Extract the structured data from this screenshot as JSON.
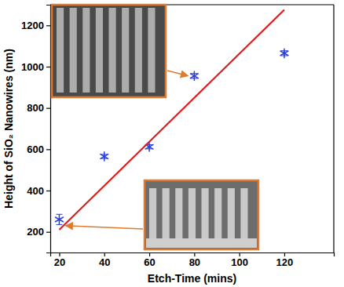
{
  "chart_data": {
    "type": "scatter",
    "x_label": "Etch-Time (mins)",
    "y_label": "Height of SiO₂ Nanowires (nm)",
    "xlim": [
      16,
      142
    ],
    "xticks": [
      20,
      40,
      60,
      80,
      100,
      120
    ],
    "ylim": [
      100,
      1300
    ],
    "yticks": [
      200,
      400,
      600,
      800,
      1000,
      1200
    ],
    "grid": false,
    "series": [
      {
        "type": "scatter",
        "color": "#2b3fd6",
        "marker": "asterisk",
        "x": [
          20,
          40,
          60,
          80,
          120
        ],
        "values": [
          260,
          565,
          612,
          955,
          1065
        ],
        "errors": [
          25,
          10,
          10,
          12,
          12
        ]
      },
      {
        "type": "line",
        "color": "#e01b1b",
        "line_style": "solid",
        "x": [
          20,
          120
        ],
        "values": [
          210,
          1275
        ]
      }
    ]
  }
}
